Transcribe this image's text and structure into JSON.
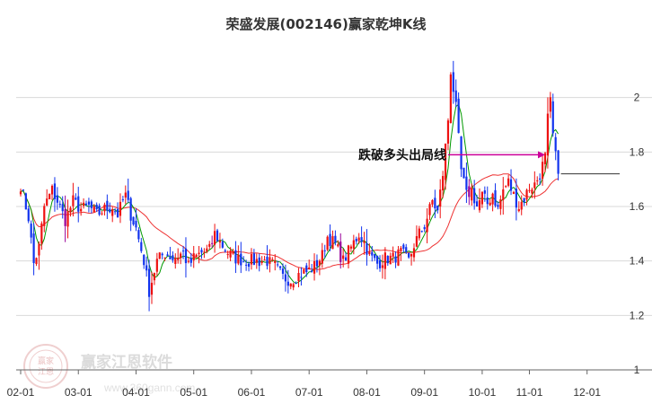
{
  "chart_data": {
    "type": "candlestick",
    "title": "荣盛发展(002146)赢家乾坤K线",
    "ylim": [
      1.0,
      2.2
    ],
    "yticks": [
      {
        "value": 1.0,
        "label": "1"
      },
      {
        "value": 1.2,
        "label": "1.2"
      },
      {
        "value": 1.4,
        "label": "1.4"
      },
      {
        "value": 1.6,
        "label": "1.6"
      },
      {
        "value": 1.8,
        "label": "1.8"
      },
      {
        "value": 2.0,
        "label": "2"
      }
    ],
    "xticks": [
      {
        "day": 0,
        "label": "02-01"
      },
      {
        "day": 22,
        "label": "03-01"
      },
      {
        "day": 44,
        "label": "04-01"
      },
      {
        "day": 66,
        "label": "05-01"
      },
      {
        "day": 88,
        "label": "06-01"
      },
      {
        "day": 110,
        "label": "07-01"
      },
      {
        "day": 132,
        "label": "08-01"
      },
      {
        "day": 154,
        "label": "09-01"
      },
      {
        "day": 176,
        "label": "10-01"
      },
      {
        "day": 194,
        "label": "11-01"
      },
      {
        "day": 216,
        "label": "12-01"
      }
    ],
    "last_close": 1.72,
    "annotation": {
      "text": "跌破多头出局线",
      "price": 1.79,
      "from_day": 163,
      "to_day": 200
    },
    "colors": {
      "up": "#ee1111",
      "down": "#1133ee",
      "special": "#990099",
      "ma_short": "#009900",
      "ma_long": "#ee3333",
      "arrow": "#cc0099",
      "grid": "#d9d9d9"
    },
    "anchors": [
      [
        0,
        1.68
      ],
      [
        3,
        1.56
      ],
      [
        5,
        1.39
      ],
      [
        7,
        1.45
      ],
      [
        9,
        1.6
      ],
      [
        12,
        1.66
      ],
      [
        14,
        1.62
      ],
      [
        17,
        1.55
      ],
      [
        20,
        1.62
      ],
      [
        23,
        1.59
      ],
      [
        26,
        1.6
      ],
      [
        29,
        1.57
      ],
      [
        32,
        1.59
      ],
      [
        35,
        1.6
      ],
      [
        37,
        1.57
      ],
      [
        39,
        1.62
      ],
      [
        40,
        1.64
      ],
      [
        42,
        1.57
      ],
      [
        44,
        1.52
      ],
      [
        47,
        1.4
      ],
      [
        49,
        1.29
      ],
      [
        52,
        1.4
      ],
      [
        55,
        1.43
      ],
      [
        58,
        1.41
      ],
      [
        62,
        1.43
      ],
      [
        64,
        1.38
      ],
      [
        66,
        1.41
      ],
      [
        69,
        1.43
      ],
      [
        72,
        1.44
      ],
      [
        74,
        1.5
      ],
      [
        76,
        1.47
      ],
      [
        79,
        1.43
      ],
      [
        82,
        1.41
      ],
      [
        86,
        1.4
      ],
      [
        90,
        1.4
      ],
      [
        94,
        1.4
      ],
      [
        97,
        1.38
      ],
      [
        100,
        1.34
      ],
      [
        103,
        1.33
      ],
      [
        106,
        1.35
      ],
      [
        109,
        1.36
      ],
      [
        112,
        1.38
      ],
      [
        115,
        1.42
      ],
      [
        117,
        1.49
      ],
      [
        120,
        1.46
      ],
      [
        123,
        1.4
      ],
      [
        126,
        1.45
      ],
      [
        129,
        1.5
      ],
      [
        131,
        1.47
      ],
      [
        133,
        1.42
      ],
      [
        136,
        1.39
      ],
      [
        139,
        1.41
      ],
      [
        142,
        1.41
      ],
      [
        145,
        1.43
      ],
      [
        148,
        1.4
      ],
      [
        150,
        1.46
      ],
      [
        152,
        1.5
      ],
      [
        154,
        1.53
      ],
      [
        157,
        1.62
      ],
      [
        159,
        1.58
      ],
      [
        161,
        1.72
      ],
      [
        163,
        1.92
      ],
      [
        164,
        2.1
      ],
      [
        166,
        1.96
      ],
      [
        168,
        1.73
      ],
      [
        170,
        1.64
      ],
      [
        172,
        1.66
      ],
      [
        174,
        1.6
      ],
      [
        176,
        1.64
      ],
      [
        178,
        1.61
      ],
      [
        180,
        1.65
      ],
      [
        182,
        1.59
      ],
      [
        184,
        1.66
      ],
      [
        186,
        1.69
      ],
      [
        188,
        1.64
      ],
      [
        190,
        1.6
      ],
      [
        192,
        1.63
      ],
      [
        194,
        1.67
      ],
      [
        196,
        1.68
      ],
      [
        198,
        1.72
      ],
      [
        200,
        1.78
      ],
      [
        201,
        1.92
      ],
      [
        202,
        1.98
      ],
      [
        203,
        1.86
      ],
      [
        204,
        1.78
      ],
      [
        205,
        1.72
      ]
    ]
  },
  "watermark": {
    "name": "赢家江恩软件",
    "url": "www.360gann.com",
    "seal_line1": "赢家",
    "seal_line2": "江恩"
  }
}
